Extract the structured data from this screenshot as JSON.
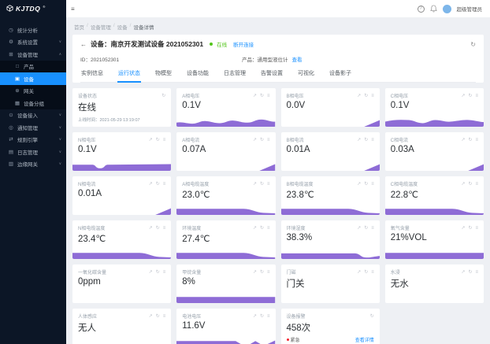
{
  "colors": {
    "accent": "#1890ff",
    "chart_purple": "#8e6cd6",
    "online_green": "#52c41a",
    "alarm_red": "#f5222d",
    "sidebar_bg": "#0c1626"
  },
  "icons": {
    "pie-chart-icon": "◷",
    "gear-icon": "⚙",
    "appstore-icon": "⊞",
    "product-icon": "□",
    "device-icon": "▣",
    "gateway-icon": "⊕",
    "group-icon": "▦",
    "access-icon": "⊙",
    "notify-icon": "◎",
    "rule-icon": "⇄",
    "log-icon": "▤",
    "edge-icon": "▥",
    "menu-fold-icon": "≡",
    "help-icon": "?",
    "back-icon": "←",
    "refresh-icon": "↻",
    "line-chart-icon": "↗",
    "more-icon": "≡",
    "chevron-down": "∨",
    "chevron-up": "∧"
  },
  "brand": {
    "logo_text": "KJTDQ",
    "registered": "®"
  },
  "topbar": {
    "user_name": "超级管理员"
  },
  "sidebar": {
    "items": [
      {
        "key": "stats",
        "label": "统计分析",
        "icon": "pie-chart-icon"
      },
      {
        "key": "system-settings",
        "label": "系统设置",
        "icon": "gear-icon",
        "arrow": "down"
      },
      {
        "key": "device-management",
        "label": "设备管理",
        "icon": "appstore-icon",
        "arrow": "up",
        "children": [
          {
            "key": "product",
            "label": "产品",
            "icon": "product-icon"
          },
          {
            "key": "device",
            "label": "设备",
            "icon": "device-icon",
            "active": true
          },
          {
            "key": "gateway",
            "label": "网关",
            "icon": "gateway-icon"
          },
          {
            "key": "device-group",
            "label": "设备分组",
            "icon": "group-icon"
          }
        ]
      },
      {
        "key": "device-access",
        "label": "设备接入",
        "icon": "access-icon",
        "arrow": "down"
      },
      {
        "key": "notification",
        "label": "通知管理",
        "icon": "notify-icon",
        "arrow": "down"
      },
      {
        "key": "rule-engine",
        "label": "规则引擎",
        "icon": "rule-icon",
        "arrow": "down"
      },
      {
        "key": "log-management",
        "label": "日志管理",
        "icon": "log-icon",
        "arrow": "down"
      },
      {
        "key": "edge-gateway",
        "label": "边缘网关",
        "icon": "edge-icon",
        "arrow": "down"
      }
    ]
  },
  "breadcrumb": [
    "首页",
    "设备管理",
    "设备",
    "设备详情"
  ],
  "device_header": {
    "title": "设备：南京开发测试设备 2021052301",
    "status": "在线",
    "disconnect_link": "断开连接",
    "id_text": "ID：2021052301",
    "product_text": "产品：通用型液位计",
    "view_link": "查看"
  },
  "tabs": [
    {
      "label": "实例信息"
    },
    {
      "label": "运行状态",
      "active": true
    },
    {
      "label": "物模型"
    },
    {
      "label": "设备功能"
    },
    {
      "label": "日志管理"
    },
    {
      "label": "告警设置"
    },
    {
      "label": "可视化"
    },
    {
      "label": "设备影子"
    }
  ],
  "cards": [
    {
      "key": "device-status",
      "label": "设备状态",
      "value": "在线",
      "chart": "none",
      "icons": [
        "refresh"
      ],
      "footer": "上线时间：2021-05-29 13:19:07"
    },
    {
      "key": "phase-a-voltage",
      "label": "A相电压",
      "value": "0.1V",
      "chart": "bumps",
      "icons": [
        "trend",
        "refresh",
        "more"
      ]
    },
    {
      "key": "phase-b-voltage",
      "label": "B相电压",
      "value": "0.0V",
      "chart": "tri",
      "icons": [
        "trend",
        "refresh",
        "more"
      ]
    },
    {
      "key": "phase-c-voltage",
      "label": "C相电压",
      "value": "0.1V",
      "chart": "bumps2",
      "icons": [
        "trend",
        "refresh",
        "more"
      ]
    },
    {
      "key": "phase-n-voltage",
      "label": "N相电压",
      "value": "0.1V",
      "chart": "mounds",
      "icons": [
        "trend",
        "refresh",
        "more"
      ]
    },
    {
      "key": "phase-a-current",
      "label": "A相电流",
      "value": "0.07A",
      "chart": "tri",
      "icons": [
        "trend",
        "refresh",
        "more"
      ]
    },
    {
      "key": "phase-b-current",
      "label": "B相电流",
      "value": "0.01A",
      "chart": "tri",
      "icons": [
        "trend",
        "refresh",
        "more"
      ]
    },
    {
      "key": "phase-c-current",
      "label": "C相电流",
      "value": "0.03A",
      "chart": "tri",
      "icons": [
        "trend",
        "refresh",
        "more"
      ]
    },
    {
      "key": "phase-n-current",
      "label": "N相电流",
      "value": "0.01A",
      "chart": "tri",
      "icons": [
        "trend",
        "refresh",
        "more"
      ]
    },
    {
      "key": "cable-temp-a",
      "label": "A相电缆温度",
      "value": "23.0℃",
      "chart": "flatdrop",
      "icons": [
        "trend",
        "refresh",
        "more"
      ]
    },
    {
      "key": "cable-temp-b",
      "label": "B相电缆温度",
      "value": "23.8℃",
      "chart": "flatdrop",
      "icons": [
        "trend",
        "refresh",
        "more"
      ]
    },
    {
      "key": "cable-temp-c",
      "label": "C相电缆温度",
      "value": "22.8℃",
      "chart": "flatdrop",
      "icons": [
        "trend",
        "refresh",
        "more"
      ]
    },
    {
      "key": "cable-temp-n",
      "label": "N相电缆温度",
      "value": "23.4℃",
      "chart": "flatdrop",
      "icons": [
        "trend",
        "refresh",
        "more"
      ]
    },
    {
      "key": "ambient-temp",
      "label": "环境温度",
      "value": "27.4℃",
      "chart": "flatdrop",
      "icons": [
        "trend",
        "refresh",
        "more"
      ]
    },
    {
      "key": "ambient-humidity",
      "label": "环境湿度",
      "value": "38.3%",
      "chart": "flatdip",
      "icons": [
        "trend",
        "refresh",
        "more"
      ]
    },
    {
      "key": "oxygen",
      "label": "氧气含量",
      "value": "21%VOL",
      "chart": "flat",
      "icons": [
        "trend",
        "refresh",
        "more"
      ]
    },
    {
      "key": "carbon-monoxide",
      "label": "一氧化碳含量",
      "value": "0ppm",
      "chart": "none",
      "icons": [
        "trend",
        "refresh",
        "more"
      ]
    },
    {
      "key": "methane",
      "label": "甲烷含量",
      "value": "8%",
      "chart": "flat",
      "icons": [
        "trend",
        "refresh",
        "more"
      ]
    },
    {
      "key": "door-magnet",
      "label": "门磁",
      "value": "门关",
      "chart": "none",
      "icons": [
        "trend",
        "refresh",
        "more"
      ]
    },
    {
      "key": "water-immersion",
      "label": "水浸",
      "value": "无水",
      "chart": "none",
      "icons": [
        "trend",
        "refresh",
        "more"
      ]
    },
    {
      "key": "human-presence",
      "label": "人体感应",
      "value": "无人",
      "chart": "none",
      "icons": [
        "trend",
        "refresh",
        "more"
      ]
    },
    {
      "key": "battery-voltage",
      "label": "电池电压",
      "value": "11.6V",
      "chart": "battery",
      "icons": [
        "trend",
        "refresh",
        "more"
      ]
    },
    {
      "key": "device-alarm",
      "label": "设备报警",
      "value": "458次",
      "chart": "none",
      "icons": [
        "refresh"
      ],
      "alarm_tag": "紧急",
      "alarm_link": "查看详情"
    }
  ]
}
